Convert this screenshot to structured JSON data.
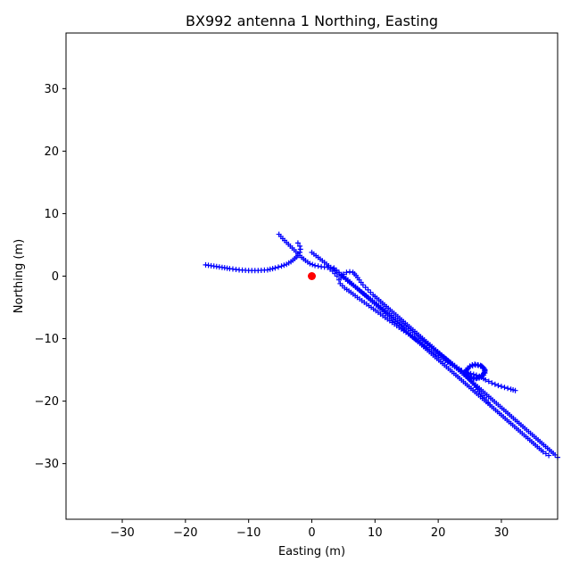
{
  "chart_data": {
    "type": "scatter",
    "title": "BX992 antenna 1 Northing, Easting",
    "xlabel": "Easting (m)",
    "ylabel": "Northing (m)",
    "xlim": [
      -38.9,
      38.9
    ],
    "ylim": [
      -38.9,
      38.9
    ],
    "xticks": [
      -30,
      -20,
      -10,
      0,
      10,
      20,
      30
    ],
    "yticks": [
      -30,
      -20,
      -10,
      0,
      10,
      20,
      30
    ],
    "xtick_labels": [
      "−30",
      "−20",
      "−10",
      "0",
      "10",
      "20",
      "30"
    ],
    "ytick_labels": [
      "−30",
      "−20",
      "−10",
      "0",
      "10",
      "20",
      "30"
    ],
    "grid": false,
    "colors": {
      "track": "#0000ff",
      "origin": "#ff0000"
    },
    "segments": [
      [
        [
          -16.8,
          1.8
        ],
        [
          -15.5,
          1.6
        ],
        [
          -14.2,
          1.4
        ],
        [
          -13,
          1.2
        ],
        [
          -11.5,
          1
        ],
        [
          -10,
          0.9
        ],
        [
          -8.5,
          0.9
        ],
        [
          -7,
          1
        ],
        [
          -5.8,
          1.3
        ],
        [
          -4.8,
          1.6
        ],
        [
          -4,
          1.9
        ],
        [
          -3.3,
          2.3
        ],
        [
          -2.7,
          2.8
        ],
        [
          -2.2,
          3.3
        ],
        [
          -1.9,
          3.8
        ],
        [
          -1.8,
          4.3
        ],
        [
          -1.9,
          4.8
        ],
        [
          -2.2,
          5.3
        ]
      ],
      [
        [
          -5.2,
          6.7
        ],
        [
          -4.6,
          6
        ],
        [
          -4,
          5.4
        ],
        [
          -3.4,
          4.8
        ],
        [
          -2.8,
          4.2
        ],
        [
          -2.2,
          3.6
        ],
        [
          -1.6,
          3
        ],
        [
          -1,
          2.5
        ],
        [
          -0.3,
          2
        ],
        [
          0.5,
          1.7
        ],
        [
          1.5,
          1.5
        ],
        [
          2.5,
          1.4
        ],
        [
          3.3,
          0.8
        ],
        [
          4,
          0
        ],
        [
          4.3,
          -0.6
        ],
        [
          4.5,
          -1.2
        ],
        [
          5.2,
          -1.9
        ],
        [
          6.2,
          -2.6
        ],
        [
          7.2,
          -3.4
        ],
        [
          8.3,
          -4.2
        ],
        [
          9.4,
          -5
        ],
        [
          10.5,
          -5.8
        ],
        [
          11.6,
          -6.6
        ],
        [
          12.7,
          -7.4
        ],
        [
          13.8,
          -8.2
        ],
        [
          14.9,
          -9
        ],
        [
          16,
          -9.8
        ],
        [
          17.1,
          -10.6
        ],
        [
          18.2,
          -11.4
        ],
        [
          19.3,
          -12.2
        ],
        [
          20.4,
          -13
        ],
        [
          21.5,
          -13.8
        ],
        [
          22.6,
          -14.5
        ],
        [
          23.7,
          -15.1
        ],
        [
          24.7,
          -15.5
        ],
        [
          25.6,
          -15.7
        ],
        [
          26.5,
          -16
        ],
        [
          27.5,
          -16.6
        ],
        [
          28.5,
          -17.1
        ],
        [
          29.5,
          -17.5
        ],
        [
          30.5,
          -17.8
        ],
        [
          31.5,
          -18.1
        ],
        [
          32.2,
          -18.3
        ]
      ],
      [
        [
          0,
          3.8
        ],
        [
          1,
          3
        ],
        [
          2,
          2.2
        ],
        [
          3,
          1.4
        ],
        [
          4,
          0.6
        ],
        [
          5,
          -0.2
        ],
        [
          5.7,
          -0.8
        ],
        [
          6.6,
          -1.5
        ],
        [
          7.6,
          -2.3
        ],
        [
          8.6,
          -3.1
        ],
        [
          9.6,
          -3.9
        ],
        [
          10.6,
          -4.7
        ],
        [
          11.6,
          -5.5
        ],
        [
          12.6,
          -6.3
        ],
        [
          13.6,
          -7.1
        ],
        [
          14.6,
          -7.9
        ],
        [
          15.6,
          -8.7
        ],
        [
          16.6,
          -9.5
        ],
        [
          17.6,
          -10.3
        ],
        [
          18.6,
          -11.1
        ],
        [
          19.6,
          -11.9
        ],
        [
          20.6,
          -12.7
        ],
        [
          21.6,
          -13.5
        ],
        [
          22.6,
          -14.3
        ],
        [
          23.6,
          -15.1
        ],
        [
          24.4,
          -15.9
        ],
        [
          25.2,
          -16.8
        ],
        [
          26,
          -17.8
        ],
        [
          26.8,
          -18.8
        ],
        [
          27.6,
          -19.8
        ],
        [
          28.2,
          -20.6
        ]
      ],
      [
        [
          4.6,
          -0.3
        ],
        [
          5,
          0.3
        ],
        [
          5.5,
          0.6
        ],
        [
          6,
          0.7
        ],
        [
          6.5,
          0.6
        ],
        [
          7,
          0.1
        ],
        [
          7.5,
          -0.6
        ],
        [
          8.1,
          -1.4
        ],
        [
          8.9,
          -2.2
        ],
        [
          9.7,
          -3
        ],
        [
          10.6,
          -3.8
        ],
        [
          11.5,
          -4.6
        ],
        [
          12.4,
          -5.4
        ],
        [
          13.3,
          -6.2
        ],
        [
          14.2,
          -7
        ],
        [
          15.1,
          -7.8
        ],
        [
          16,
          -8.6
        ],
        [
          16.9,
          -9.4
        ],
        [
          17.8,
          -10.2
        ],
        [
          18.7,
          -11
        ],
        [
          19.6,
          -11.8
        ],
        [
          20.5,
          -12.6
        ],
        [
          21.4,
          -13.4
        ],
        [
          22.3,
          -14.2
        ],
        [
          23.2,
          -15
        ],
        [
          24.1,
          -15.8
        ],
        [
          25,
          -16.6
        ],
        [
          25.9,
          -17.4
        ],
        [
          26.8,
          -18.2
        ],
        [
          27.7,
          -19
        ],
        [
          28.6,
          -19.8
        ],
        [
          29.5,
          -20.6
        ],
        [
          30.4,
          -21.4
        ],
        [
          31.3,
          -22.2
        ],
        [
          32.2,
          -23
        ],
        [
          33.1,
          -23.8
        ],
        [
          34,
          -24.6
        ],
        [
          34.9,
          -25.4
        ],
        [
          35.8,
          -26.2
        ],
        [
          36.7,
          -27
        ],
        [
          37.6,
          -27.8
        ],
        [
          38.5,
          -28.6
        ],
        [
          38.9,
          -29
        ]
      ],
      [
        [
          3.5,
          1.3
        ],
        [
          4.3,
          0.6
        ],
        [
          5.1,
          -0.1
        ],
        [
          6,
          -0.9
        ],
        [
          6.9,
          -1.7
        ],
        [
          7.8,
          -2.5
        ],
        [
          8.7,
          -3.3
        ],
        [
          9.6,
          -4.1
        ],
        [
          10.5,
          -4.9
        ],
        [
          11.4,
          -5.7
        ],
        [
          12.3,
          -6.5
        ],
        [
          13.2,
          -7.3
        ],
        [
          14.1,
          -8.1
        ],
        [
          15,
          -8.9
        ],
        [
          15.9,
          -9.7
        ],
        [
          16.8,
          -10.5
        ],
        [
          17.7,
          -11.3
        ],
        [
          18.6,
          -12.1
        ],
        [
          19.5,
          -12.9
        ],
        [
          20.4,
          -13.7
        ],
        [
          21.3,
          -14.5
        ],
        [
          22.2,
          -15.3
        ],
        [
          23.1,
          -16.1
        ],
        [
          24,
          -16.9
        ],
        [
          24.9,
          -17.7
        ],
        [
          25.8,
          -18.5
        ],
        [
          26.7,
          -19.3
        ],
        [
          27.6,
          -20.1
        ],
        [
          28.5,
          -20.9
        ],
        [
          29.4,
          -21.7
        ],
        [
          30.3,
          -22.5
        ],
        [
          31.2,
          -23.3
        ],
        [
          32.1,
          -24.1
        ],
        [
          33,
          -24.9
        ],
        [
          33.9,
          -25.7
        ],
        [
          34.8,
          -26.5
        ],
        [
          35.7,
          -27.3
        ],
        [
          36.6,
          -28.1
        ],
        [
          37.5,
          -28.7
        ]
      ],
      [
        [
          26.8,
          -14.4
        ],
        [
          25.9,
          -14.2
        ],
        [
          25,
          -14.5
        ],
        [
          24.4,
          -15.1
        ],
        [
          24.5,
          -15.8
        ],
        [
          25.1,
          -16.3
        ],
        [
          26,
          -16.4
        ],
        [
          26.9,
          -16.1
        ],
        [
          27.4,
          -15.5
        ],
        [
          27.3,
          -14.8
        ],
        [
          26.7,
          -14.3
        ],
        [
          25.8,
          -14.1
        ],
        [
          25,
          -14.4
        ],
        [
          24.5,
          -15
        ],
        [
          24.6,
          -15.7
        ],
        [
          25.3,
          -16.2
        ],
        [
          26.2,
          -16.3
        ],
        [
          27,
          -15.9
        ],
        [
          27.4,
          -15.2
        ],
        [
          27.1,
          -14.6
        ],
        [
          26.3,
          -14.2
        ],
        [
          25.4,
          -14.2
        ],
        [
          24.7,
          -14.7
        ],
        [
          24.4,
          -15.4
        ],
        [
          24.8,
          -16
        ],
        [
          25.6,
          -16.4
        ],
        [
          26.5,
          -16.3
        ],
        [
          27.2,
          -15.8
        ],
        [
          27.4,
          -15
        ],
        [
          26.9,
          -14.4
        ]
      ]
    ],
    "origin_point": {
      "x": 0,
      "y": 0
    }
  }
}
